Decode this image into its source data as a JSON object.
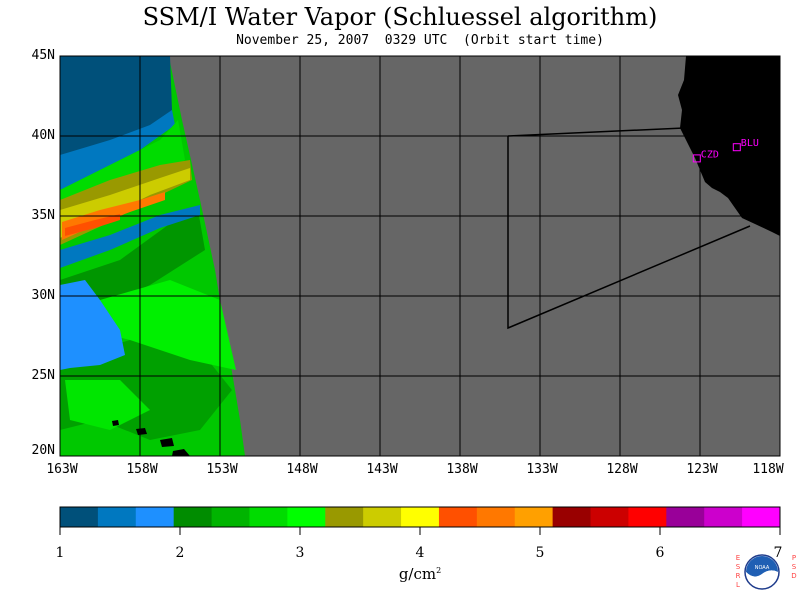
{
  "title": "SSM/I Water Vapor (Schluessel algorithm)",
  "subtitle": "November 25, 2007  0329 UTC  (Orbit start time)",
  "map": {
    "lat_labels": [
      "45N",
      "40N",
      "35N",
      "30N",
      "25N",
      "20N"
    ],
    "lon_labels": [
      "163W",
      "158W",
      "153W",
      "148W",
      "143W",
      "138W",
      "133W",
      "128W",
      "123W",
      "118W"
    ],
    "lat_range": [
      20,
      45
    ],
    "lon_range": [
      -163,
      -118
    ],
    "stations": [
      {
        "name": "CZD",
        "lat": 38.6,
        "lon": -123.2
      },
      {
        "name": "BLU",
        "lat": 39.3,
        "lon": -120.7
      }
    ],
    "colors": {
      "no_data": "#666666",
      "land": "#000000",
      "station": "#ff00ff"
    }
  },
  "colorbar": {
    "labels": [
      "1",
      "2",
      "3",
      "4",
      "5",
      "6",
      "7"
    ],
    "unit": "g/cm",
    "unit_exponent": "2",
    "colors": [
      "#00507a",
      "#0078c0",
      "#1e90ff",
      "#008c00",
      "#00b400",
      "#00dc00",
      "#00ff00",
      "#999900",
      "#cccc00",
      "#ffff00",
      "#ff5000",
      "#ff7800",
      "#ffa000",
      "#990000",
      "#cc0000",
      "#ff0000",
      "#990099",
      "#cc00cc",
      "#ff00ff"
    ]
  },
  "logo": {
    "left_letters": "ESRL",
    "right_letters": "PSD",
    "center": "NOAA"
  }
}
